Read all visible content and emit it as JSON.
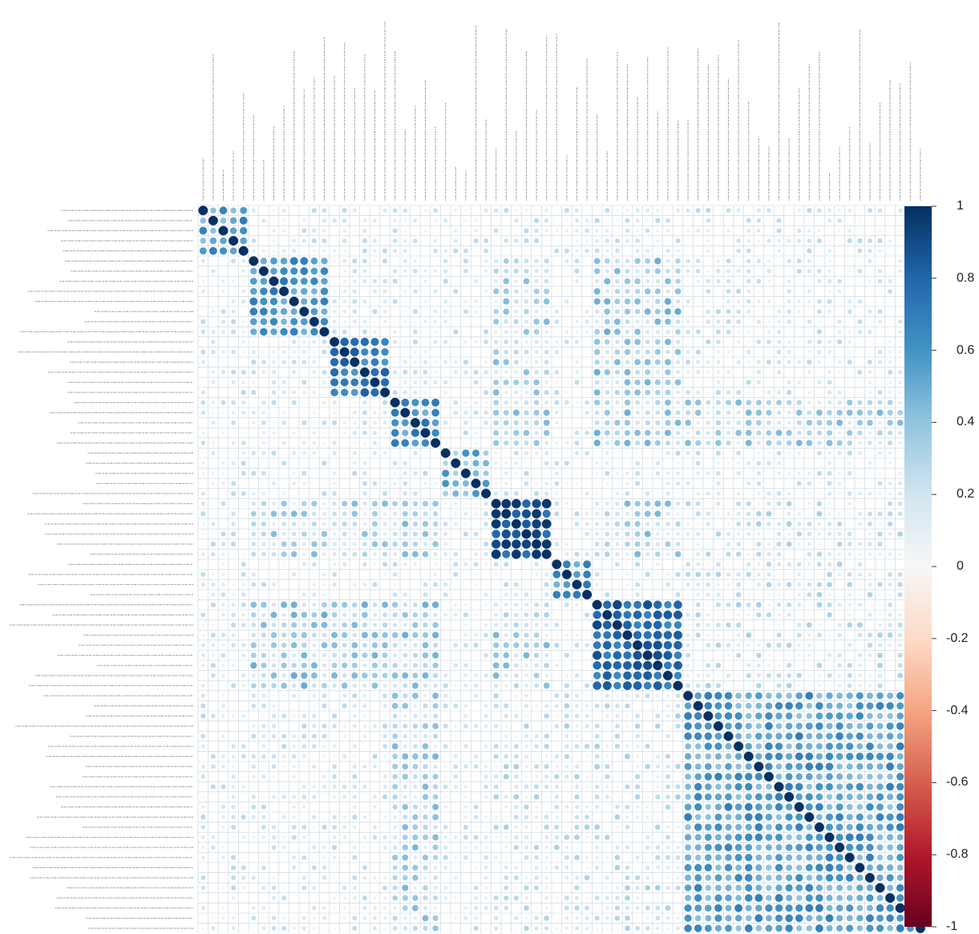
{
  "chart_data": {
    "type": "heatmap",
    "variant": "corrplot-circle",
    "lower_triangle_dominant": false,
    "num_variables": 72,
    "title": "",
    "xlabel": "",
    "ylabel": "",
    "row_labels_note": "Row and column variable labels are present but too small to read; not transcribed.",
    "value_range": [
      -1,
      1
    ],
    "diagonal_value": 1,
    "blocks": [
      {
        "rows": [
          0,
          4
        ],
        "mean_r": 0.55
      },
      {
        "rows": [
          5,
          12
        ],
        "mean_r": 0.6
      },
      {
        "rows": [
          13,
          18
        ],
        "mean_r": 0.7
      },
      {
        "rows": [
          19,
          23
        ],
        "mean_r": 0.6
      },
      {
        "rows": [
          24,
          28
        ],
        "mean_r": 0.45
      },
      {
        "rows": [
          29,
          34
        ],
        "mean_r": 0.85
      },
      {
        "rows": [
          35,
          38
        ],
        "mean_r": 0.6
      },
      {
        "rows": [
          39,
          47
        ],
        "mean_r": 0.78
      },
      {
        "rows": [
          48,
          71
        ],
        "mean_r": 0.55
      }
    ],
    "cross_block_mean_r": [
      {
        "a": [
          5,
          23
        ],
        "b": [
          39,
          47
        ],
        "r": 0.35
      },
      {
        "a": [
          5,
          23
        ],
        "b": [
          29,
          34
        ],
        "r": 0.3
      },
      {
        "a": [
          29,
          34
        ],
        "b": [
          39,
          47
        ],
        "r": 0.3
      },
      {
        "a": [
          19,
          23
        ],
        "b": [
          48,
          71
        ],
        "r": 0.3
      },
      {
        "a": [
          48,
          71
        ],
        "b": [
          29,
          47
        ],
        "r": 0.18
      },
      {
        "a": [
          0,
          71
        ],
        "b": [
          0,
          71
        ],
        "r": 0.12
      }
    ],
    "colorbar": {
      "ticks": [
        "1",
        "0.8",
        "0.6",
        "0.4",
        "0.2",
        "0",
        "-0.2",
        "-0.4",
        "-0.6",
        "-0.8",
        "-1"
      ],
      "tick_values": [
        1,
        0.8,
        0.6,
        0.4,
        0.2,
        0,
        -0.2,
        -0.4,
        -0.6,
        -0.8,
        -1
      ],
      "colors": {
        "neg_strong": "#67001f",
        "neg_mid": "#d6604d",
        "neg_light": "#fddbc7",
        "zero": "#f7f7f7",
        "pos_light": "#d1e5f0",
        "pos_mid": "#4393c3",
        "pos_strong": "#053061"
      }
    },
    "gridline_color": "#c9d3dc",
    "label_color": "#555555"
  }
}
